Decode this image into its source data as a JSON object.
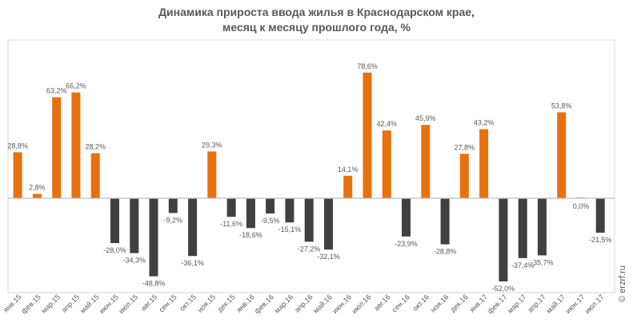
{
  "chart_data": {
    "type": "bar",
    "title_line1": "Динамика прироста ввода жилья в Краснодарском крае,",
    "title_line2": "месяц к месяцу прошлого года, %",
    "watermark": "© erzrf.ru",
    "categories": [
      "янв.15",
      "фев.15",
      "мар.15",
      "апр.15",
      "май.15",
      "июн.15",
      "июл.15",
      "авг.15",
      "сен.15",
      "окт.15",
      "ноя.15",
      "дек.15",
      "янв.16",
      "фев.16",
      "мар.16",
      "апр.16",
      "май.16",
      "июн.16",
      "июл.16",
      "авг.16",
      "сен.16",
      "окт.16",
      "ноя.16",
      "дек.16",
      "янв.17",
      "фев.17",
      "мар.17",
      "апр.17",
      "май.17",
      "июн.17",
      "июл.17"
    ],
    "values": [
      28.8,
      2.8,
      63.2,
      66.2,
      28.2,
      -28.0,
      -34.3,
      -48.8,
      -9.2,
      -36.1,
      29.3,
      -11.6,
      -18.6,
      -9.5,
      -15.1,
      -27.2,
      -32.1,
      14.1,
      78.6,
      42.4,
      -23.9,
      45.9,
      -28.8,
      27.8,
      43.2,
      -52.0,
      -37.4,
      -35.7,
      53.8,
      0.0,
      -21.5
    ],
    "labels": [
      "28,8%",
      "2,8%",
      "63,2%",
      "66,2%",
      "28,2%",
      "-28,0%",
      "-34,3%",
      "-48,8%",
      "-9,2%",
      "-36,1%",
      "29,3%",
      "-11,6%",
      "-18,6%",
      "-9,5%",
      "-15,1%",
      "-27,2%",
      "-32,1%",
      "14,1%",
      "78,6%",
      "42,4%",
      "-23,9%",
      "45,9%",
      "-28,8%",
      "27,8%",
      "43,2%",
      "-52,0%",
      "-37,4%",
      "-35,7%",
      "53,8%",
      "0,0%",
      "-21,5%"
    ],
    "colors": {
      "positive": "#E8710E",
      "negative": "#404040",
      "axis": "#BFBFBF",
      "text": "#595959"
    },
    "grid": false,
    "legend": "none"
  }
}
